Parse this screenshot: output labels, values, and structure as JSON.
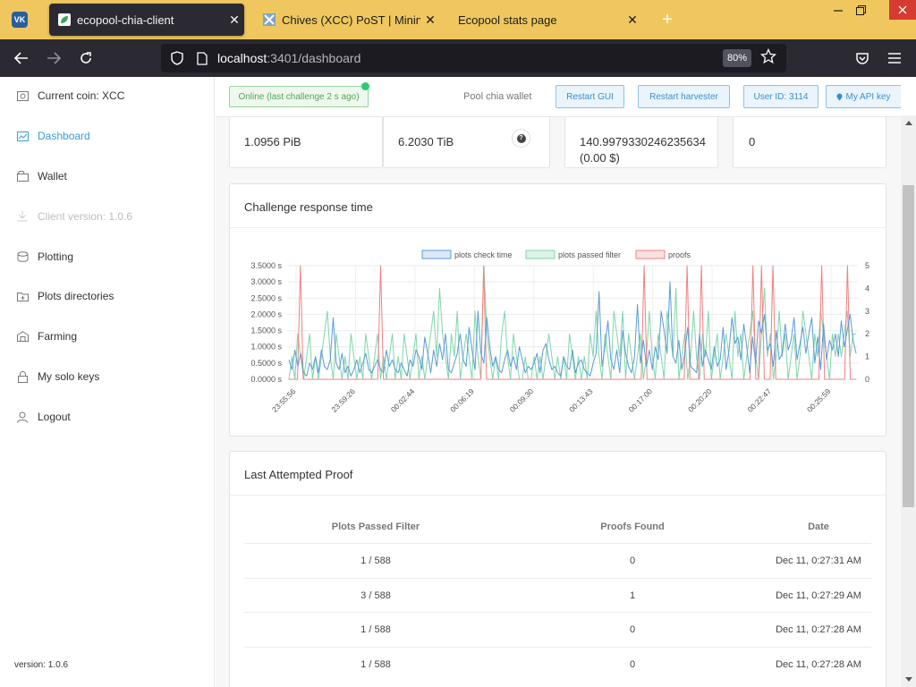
{
  "browser": {
    "tabs": [
      {
        "title": "ecopool-chia-client",
        "icon": "leaf-icon",
        "active": true
      },
      {
        "title": "Chives (XCC) PoST | Mining Poo",
        "icon": "chives-icon",
        "active": false
      },
      {
        "title": "Ecopool stats page",
        "icon": "",
        "active": false
      }
    ],
    "pinned_tab_icon": "vk-icon",
    "vk_label": "VK",
    "url_host": "localhost",
    "url_rest": ":3401/dashboard",
    "zoom": "80%",
    "close_glyph": "✕",
    "new_tab_glyph": "+"
  },
  "sidebar": {
    "items": [
      {
        "label": "Current coin: XCC",
        "icon": "coin-icon",
        "state": "normal"
      },
      {
        "label": "Dashboard",
        "icon": "chart-icon",
        "state": "active"
      },
      {
        "label": "Wallet",
        "icon": "wallet-icon",
        "state": "normal"
      },
      {
        "label": "Client version: 1.0.6",
        "icon": "download-icon",
        "state": "disabled"
      },
      {
        "label": "Plotting",
        "icon": "database-icon",
        "state": "normal"
      },
      {
        "label": "Plots directories",
        "icon": "folder-icon",
        "state": "normal"
      },
      {
        "label": "Farming",
        "icon": "barn-icon",
        "state": "normal"
      },
      {
        "label": "My solo keys",
        "icon": "lock-icon",
        "state": "normal"
      },
      {
        "label": "Logout",
        "icon": "user-icon",
        "state": "normal"
      }
    ],
    "version": "version: 1.0.6"
  },
  "topbar": {
    "status": "Online (last challenge 2 s ago)",
    "pool_wallet": "Pool chia wallet",
    "restart_gui": "Restart GUI",
    "restart_harvester": "Restart harvester",
    "user_id": "User ID: 3114",
    "api_key": "My API key"
  },
  "stats": {
    "s1": "1.0956 PiB",
    "s2": "6.2030 TiB",
    "s3_line1": "140.9979330246235634",
    "s3_line2": "(0.00 $)",
    "s4": "0",
    "help_glyph": "?"
  },
  "chart_card": {
    "title": "Challenge response time"
  },
  "chart_data": {
    "type": "line",
    "title": "",
    "legend": [
      "plots check time",
      "plots passed filter",
      "proofs"
    ],
    "legend_position": "top",
    "colors": {
      "check": "#5b9bd5",
      "passed": "#7fd6aa",
      "proofs": "#f08080"
    },
    "y_left": {
      "ticks": [
        "0.0000 s",
        "0.5000 s",
        "1.0000 s",
        "1.5000 s",
        "2.0000 s",
        "2.5000 s",
        "3.0000 s",
        "3.5000 s"
      ],
      "range": [
        0,
        3.5
      ]
    },
    "y_right": {
      "ticks": [
        "0",
        "1",
        "2",
        "3",
        "4",
        "5"
      ],
      "range": [
        0,
        5
      ]
    },
    "x_labels": [
      "23:55:56",
      "23:59:26",
      "00:02:44",
      "00:06:19",
      "00:09:30",
      "00:13:43",
      "00:17:00",
      "00:20:20",
      "00:22:47",
      "00:25:59"
    ],
    "series": [
      {
        "name": "plots check time",
        "axis": "left",
        "values": [
          0.6,
          0.3,
          0.9,
          0.4,
          0.8,
          0.2,
          0.1,
          0.5,
          0.3,
          0.7,
          0.2,
          0.9,
          0.4,
          0.3,
          0.6,
          1.9,
          0.5,
          0.3,
          0.8,
          0.2,
          0.4,
          0.1,
          0.3,
          0.6,
          0.2,
          0.5,
          0.8,
          0.3,
          0.2,
          0.4,
          0.6,
          0.3,
          0.2,
          0.9,
          0.4,
          0.6,
          0.3,
          0.2,
          0.5,
          0.3,
          0.1,
          0.6,
          0.4,
          0.9,
          0.7,
          0.3,
          1.3,
          0.8,
          0.2,
          0.9,
          0.4,
          1.1,
          0.6,
          1.4,
          0.3,
          0.2,
          0.5,
          0.8,
          1.4,
          0.6,
          0.4,
          1.6,
          0.9,
          0.3,
          2.1,
          0.8,
          0.5,
          1.9,
          1.0,
          0.4,
          0.7,
          0.3,
          0.2,
          0.6,
          0.9,
          0.4,
          0.7,
          0.3,
          1.0,
          0.6,
          0.2,
          0.4,
          0.3,
          0.5,
          0.8,
          0.2,
          0.9,
          1.1,
          0.6,
          0.3,
          0.4,
          0.2,
          0.1,
          0.7,
          0.4,
          0.3,
          0.9,
          0.2,
          0.5,
          0.6,
          0.3,
          0.2,
          0.1,
          0.5,
          0.8,
          2.7,
          0.4,
          1.0,
          1.8,
          0.6,
          0.3,
          0.9,
          0.2,
          1.5,
          0.8,
          0.4,
          0.2,
          0.7,
          2.3,
          0.5,
          1.2,
          0.4,
          0.9,
          0.3,
          1.0,
          0.6,
          2.1,
          1.5,
          0.8,
          3.0,
          0.7,
          0.5,
          1.2,
          0.3,
          0.8,
          1.6,
          0.4,
          0.3,
          0.2,
          1.4,
          0.4,
          0.9,
          0.6,
          0.3,
          1.0,
          0.4,
          0.6,
          1.6,
          0.3,
          0.9,
          1.9,
          1.1,
          1.3,
          0.6,
          1.7,
          1.0,
          0.2,
          1.3,
          0.5,
          1.8,
          1.4,
          2.0,
          0.9,
          1.1,
          0.4,
          1.5,
          0.6,
          0.8,
          1.7,
          0.9,
          1.2,
          1.9,
          0.6,
          1.1,
          1.6,
          0.8,
          1.4,
          1.9,
          0.5,
          1.3,
          0.3,
          1.7,
          0.6,
          1.2,
          0.9,
          1.4,
          0.7,
          1.8,
          1.0,
          1.5,
          2.0,
          1.2,
          0.8
        ]
      },
      {
        "name": "plots passed filter",
        "axis": "right",
        "values": [
          0,
          1,
          0,
          2,
          1,
          0,
          1,
          2,
          0,
          1,
          0,
          1,
          2,
          3,
          1,
          0,
          2,
          1,
          0,
          1,
          0,
          2,
          1,
          0,
          1,
          0,
          2,
          1,
          0,
          1,
          2,
          0,
          1,
          0,
          1,
          2,
          0,
          1,
          0,
          2,
          1,
          0,
          1,
          2,
          0,
          1,
          0,
          1,
          2,
          3,
          1,
          4,
          2,
          1,
          0,
          2,
          1,
          3,
          0,
          1,
          2,
          1,
          0,
          3,
          1,
          0,
          5,
          2,
          1,
          0,
          1,
          0,
          2,
          3,
          1,
          0,
          2,
          1,
          0,
          0,
          1,
          0,
          0,
          1,
          0,
          1,
          0,
          1,
          2,
          1,
          0,
          1,
          0,
          1,
          0,
          2,
          1,
          0,
          1,
          0,
          1,
          0,
          2,
          1,
          3,
          1,
          0,
          2,
          1,
          0,
          3,
          2,
          1,
          3,
          0,
          2,
          1,
          0,
          1,
          2,
          0,
          1,
          3,
          1,
          0,
          2,
          1,
          0,
          3,
          2,
          1,
          4,
          0,
          1,
          2,
          0,
          1,
          3,
          1,
          0,
          2,
          1,
          3,
          0,
          1,
          2,
          0,
          1,
          2,
          1,
          0,
          3,
          1,
          2,
          0,
          1,
          2,
          3,
          1,
          0,
          2,
          4,
          1,
          2,
          0,
          1,
          3,
          1,
          2,
          0,
          1,
          2,
          0,
          1,
          3,
          2,
          1,
          0,
          2,
          1,
          3,
          2,
          1,
          0,
          2,
          1,
          2,
          1,
          2,
          3,
          1,
          2,
          2
        ]
      },
      {
        "name": "proofs",
        "axis": "right",
        "values": [
          0,
          0,
          0,
          0,
          5,
          0,
          0,
          0,
          0,
          0,
          0,
          0,
          0,
          0,
          0,
          0,
          0,
          0,
          0,
          0,
          0,
          0,
          0,
          0,
          0,
          0,
          0,
          0,
          0,
          0,
          0,
          0,
          5,
          0,
          0,
          0,
          0,
          0,
          0,
          0,
          0,
          0,
          0,
          0,
          0,
          0,
          0,
          0,
          0,
          0,
          0,
          0,
          0,
          0,
          0,
          0,
          0,
          0,
          0,
          0,
          0,
          0,
          0,
          0,
          0,
          0,
          0,
          0,
          5,
          0,
          0,
          0,
          0,
          0,
          0,
          0,
          0,
          0,
          0,
          0,
          0,
          0,
          0,
          0,
          0,
          0,
          0,
          0,
          0,
          0,
          0,
          0,
          0,
          0,
          0,
          0,
          0,
          0,
          0,
          0,
          0,
          0,
          0,
          0,
          0,
          0,
          0,
          0,
          0,
          0,
          0,
          0,
          0,
          0,
          0,
          0,
          0,
          0,
          0,
          0,
          0,
          0,
          0,
          0,
          5,
          0,
          0,
          0,
          0,
          0,
          0,
          0,
          0,
          0,
          0,
          0,
          0,
          0,
          0,
          5,
          0,
          0,
          0,
          0,
          5,
          0,
          0,
          0,
          0,
          0,
          0,
          0,
          0,
          0,
          0,
          0,
          0,
          0,
          0,
          0,
          0,
          0,
          5,
          0,
          0,
          5,
          0,
          0,
          0,
          5,
          0,
          0,
          0,
          0,
          0,
          0,
          0,
          0,
          0,
          0,
          0,
          0,
          0,
          0,
          0,
          0,
          5,
          0,
          0,
          0,
          0,
          0,
          0,
          0,
          0,
          5,
          0,
          0,
          0
        ]
      }
    ]
  },
  "proof_card": {
    "title": "Last Attempted Proof",
    "columns": [
      "Plots Passed Filter",
      "Proofs Found",
      "Date"
    ],
    "rows": [
      [
        "1 / 588",
        "0",
        "Dec 11, 0:27:31 AM"
      ],
      [
        "3 / 588",
        "1",
        "Dec 11, 0:27:29 AM"
      ],
      [
        "1 / 588",
        "0",
        "Dec 11, 0:27:28 AM"
      ],
      [
        "1 / 588",
        "0",
        "Dec 11, 0:27:28 AM"
      ]
    ]
  }
}
